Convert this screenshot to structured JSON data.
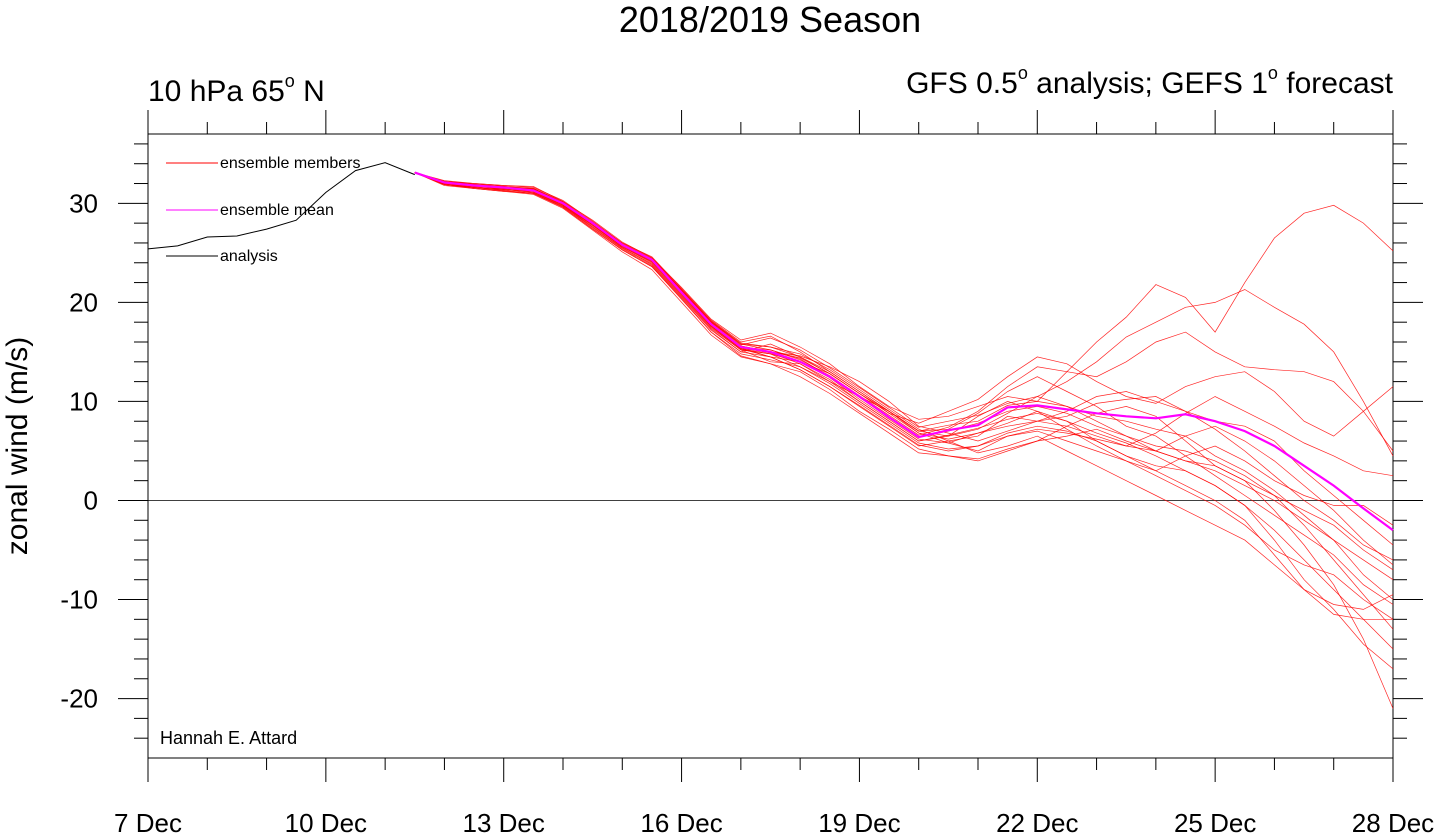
{
  "chart_data": {
    "type": "line",
    "title": "2018/2019 Season",
    "subtitle_left": "10 hPa 65",
    "subtitle_left_sup": "o",
    "subtitle_left_end": " N",
    "subtitle_right_a": "GFS 0.5",
    "subtitle_right_sup1": "o",
    "subtitle_right_b": " analysis; GEFS 1",
    "subtitle_right_sup2": "o",
    "subtitle_right_c": " forecast",
    "ylabel": "zonal wind (m/s)",
    "xlabel": "",
    "credit": "Hannah E. Attard",
    "xlim": [
      0,
      21
    ],
    "ylim": [
      -26,
      37
    ],
    "x_ticks": [
      {
        "x": 0,
        "label": "7 Dec"
      },
      {
        "x": 3,
        "label": "10 Dec"
      },
      {
        "x": 6,
        "label": "13 Dec"
      },
      {
        "x": 9,
        "label": "16 Dec"
      },
      {
        "x": 12,
        "label": "19 Dec"
      },
      {
        "x": 15,
        "label": "22 Dec"
      },
      {
        "x": 18,
        "label": "25 Dec"
      },
      {
        "x": 21,
        "label": "28 Dec"
      }
    ],
    "y_ticks": [
      {
        "y": 30,
        "label": "30"
      },
      {
        "y": 20,
        "label": "20"
      },
      {
        "y": 10,
        "label": "10"
      },
      {
        "y": 0,
        "label": "0"
      },
      {
        "y": -10,
        "label": "-10"
      },
      {
        "y": -20,
        "label": "-20"
      }
    ],
    "legend": [
      {
        "label": "ensemble members",
        "color": "#ff0000"
      },
      {
        "label": "ensemble mean",
        "color": "#ff00ff"
      },
      {
        "label": "analysis",
        "color": "#000000"
      }
    ],
    "legend_position": "top-left",
    "analysis": {
      "name": "analysis",
      "color": "#000000",
      "x": [
        0,
        0.5,
        1,
        1.5,
        2,
        2.5,
        3,
        3.5,
        4,
        4.5
      ],
      "y": [
        25.4,
        25.7,
        26.6,
        26.7,
        27.4,
        28.3,
        31.1,
        33.3,
        34.1,
        32.9
      ]
    },
    "ensemble_mean": {
      "name": "ensemble mean",
      "color": "#ff00ff",
      "x": [
        4.5,
        5,
        5.5,
        6,
        6.5,
        7,
        7.5,
        8,
        8.5,
        9,
        9.5,
        10,
        10.5,
        11,
        11.5,
        12,
        12.5,
        13,
        13.5,
        14,
        14.5,
        15,
        15.5,
        16,
        16.5,
        17,
        17.5,
        18,
        18.5,
        19,
        19.5,
        20,
        20.5,
        21
      ],
      "y": [
        33.1,
        32.1,
        31.8,
        31.6,
        31.3,
        30.0,
        28.0,
        25.8,
        24.3,
        21.0,
        17.8,
        15.5,
        15.0,
        14.0,
        12.5,
        10.5,
        8.4,
        6.4,
        7.1,
        7.6,
        9.4,
        9.6,
        9.2,
        8.8,
        8.5,
        8.3,
        8.7,
        8.0,
        7.0,
        5.5,
        3.5,
        1.5,
        -0.8,
        -3.0
      ]
    },
    "ensemble_members": {
      "name": "ensemble members",
      "color": "#ff0000",
      "x": [
        4.5,
        5,
        5.5,
        6,
        6.5,
        7,
        7.5,
        8,
        8.5,
        9,
        9.5,
        10,
        10.5,
        11,
        11.5,
        12,
        12.5,
        13,
        13.5,
        14,
        14.5,
        15,
        15.5,
        16,
        16.5,
        17,
        17.5,
        18,
        18.5,
        19,
        19.5,
        20,
        20.5,
        21
      ],
      "series": [
        {
          "y": [
            33.1,
            32.3,
            32.0,
            31.8,
            31.6,
            30.3,
            28.2,
            26.0,
            24.6,
            21.4,
            18.2,
            16.0,
            16.6,
            15.0,
            13.0,
            11.0,
            9.0,
            7.0,
            7.6,
            8.0,
            9.6,
            10.0,
            13.0,
            16.0,
            18.5,
            21.8,
            20.5,
            17.0,
            22.0,
            26.5,
            29.0,
            29.8,
            28.0,
            25.2
          ]
        },
        {
          "y": [
            33.1,
            32.0,
            31.7,
            31.5,
            31.2,
            29.8,
            27.8,
            25.6,
            24.0,
            20.8,
            17.5,
            15.2,
            14.0,
            13.8,
            12.0,
            10.0,
            8.0,
            6.0,
            6.5,
            7.2,
            8.8,
            10.5,
            12.0,
            14.0,
            16.5,
            18.0,
            19.5,
            20.0,
            21.3,
            19.5,
            17.8,
            15.0,
            10.0,
            4.5
          ]
        },
        {
          "y": [
            33.1,
            32.2,
            31.9,
            31.7,
            31.4,
            30.1,
            28.1,
            25.9,
            24.4,
            21.2,
            18.0,
            15.8,
            15.2,
            14.2,
            12.6,
            10.6,
            8.6,
            6.6,
            7.4,
            9.0,
            11.5,
            13.5,
            13.0,
            12.5,
            14.0,
            16.0,
            17.0,
            15.0,
            13.5,
            13.2,
            13.0,
            12.0,
            9.0,
            5.0
          ]
        },
        {
          "y": [
            33.1,
            31.9,
            31.6,
            31.4,
            31.1,
            29.7,
            27.6,
            25.5,
            23.8,
            20.6,
            17.3,
            15.0,
            15.8,
            14.5,
            12.8,
            10.8,
            8.8,
            7.8,
            9.0,
            10.2,
            12.5,
            14.5,
            13.8,
            12.0,
            10.5,
            9.8,
            11.5,
            12.5,
            13.0,
            11.0,
            8.0,
            6.5,
            9.0,
            11.5
          ]
        },
        {
          "y": [
            33.1,
            32.1,
            31.8,
            31.5,
            31.5,
            29.9,
            27.9,
            25.7,
            24.2,
            21.0,
            17.7,
            15.4,
            14.5,
            13.2,
            11.5,
            9.5,
            7.5,
            5.5,
            6.0,
            6.5,
            8.5,
            8.0,
            7.5,
            6.5,
            5.5,
            6.8,
            8.8,
            10.5,
            9.0,
            7.5,
            5.8,
            4.5,
            3.0,
            2.5
          ]
        },
        {
          "y": [
            33.1,
            32.0,
            31.6,
            31.3,
            31.0,
            29.6,
            27.4,
            25.3,
            23.6,
            20.4,
            17.0,
            14.8,
            14.2,
            13.5,
            12.0,
            10.5,
            9.0,
            6.8,
            5.8,
            5.0,
            6.5,
            7.0,
            6.0,
            5.0,
            4.0,
            3.0,
            4.5,
            5.5,
            4.0,
            2.0,
            0.5,
            -0.5,
            -0.5,
            -2.5
          ]
        },
        {
          "y": [
            33.1,
            32.2,
            32.0,
            31.8,
            31.7,
            30.2,
            28.3,
            26.1,
            24.5,
            21.5,
            18.3,
            16.2,
            16.9,
            15.5,
            13.8,
            11.5,
            9.5,
            8.2,
            8.5,
            9.5,
            10.5,
            10.0,
            9.5,
            8.5,
            8.0,
            7.2,
            6.5,
            4.5,
            3.0,
            1.0,
            -1.5,
            -4.0,
            -7.5,
            -10.0
          ]
        },
        {
          "y": [
            33.1,
            31.8,
            31.5,
            31.2,
            30.9,
            29.5,
            27.3,
            25.1,
            23.3,
            20.0,
            16.7,
            14.5,
            13.8,
            13.0,
            11.2,
            9.0,
            7.2,
            5.2,
            4.5,
            4.0,
            5.0,
            6.0,
            7.5,
            8.8,
            9.5,
            8.5,
            6.0,
            3.5,
            2.0,
            0.5,
            -1.0,
            -2.5,
            -5.0,
            -7.0
          ]
        },
        {
          "y": [
            33.1,
            32.1,
            31.7,
            31.6,
            31.3,
            30.0,
            27.9,
            25.8,
            24.3,
            21.1,
            17.9,
            15.6,
            15.0,
            14.6,
            13.5,
            12.0,
            10.0,
            7.5,
            6.8,
            6.0,
            7.0,
            8.0,
            8.5,
            9.8,
            10.2,
            10.5,
            9.0,
            7.2,
            5.0,
            2.5,
            0.0,
            -2.0,
            -4.5,
            -6.0
          ]
        },
        {
          "y": [
            33.1,
            32.0,
            31.8,
            31.4,
            31.2,
            29.8,
            27.7,
            25.6,
            24.1,
            20.9,
            17.6,
            15.3,
            14.8,
            13.5,
            11.8,
            9.8,
            7.8,
            5.8,
            5.2,
            5.5,
            6.8,
            7.5,
            7.0,
            6.0,
            4.5,
            3.5,
            3.0,
            1.5,
            -0.5,
            -3.0,
            -6.0,
            -9.0,
            -12.0,
            -15.0
          ]
        },
        {
          "y": [
            33.1,
            32.2,
            31.9,
            31.7,
            31.5,
            30.1,
            28.0,
            25.9,
            24.4,
            21.3,
            18.1,
            15.9,
            15.5,
            14.8,
            13.2,
            11.2,
            9.2,
            7.2,
            6.0,
            4.8,
            5.5,
            6.5,
            5.0,
            3.5,
            2.0,
            0.5,
            -1.0,
            -2.5,
            -4.0,
            -6.5,
            -9.0,
            -10.5,
            -11.0,
            -9.5
          ]
        },
        {
          "y": [
            33.1,
            31.9,
            31.6,
            31.3,
            31.0,
            29.7,
            27.5,
            25.4,
            23.7,
            20.5,
            17.2,
            15.0,
            14.5,
            14.0,
            12.4,
            10.2,
            8.2,
            6.2,
            5.8,
            6.8,
            7.8,
            9.0,
            8.0,
            6.8,
            5.8,
            4.5,
            3.0,
            1.5,
            -0.5,
            -4.0,
            -8.0,
            -11.0,
            -14.5,
            -17.0
          ]
        },
        {
          "y": [
            33.1,
            32.1,
            31.8,
            31.6,
            31.4,
            30.0,
            28.0,
            25.8,
            24.3,
            21.1,
            17.8,
            15.5,
            15.2,
            14.3,
            12.5,
            10.4,
            8.4,
            6.4,
            7.0,
            7.8,
            9.0,
            9.5,
            8.8,
            7.5,
            6.5,
            5.0,
            4.0,
            3.5,
            2.0,
            -1.0,
            -4.5,
            -8.5,
            -14.0,
            -21.0
          ]
        },
        {
          "y": [
            33.1,
            32.0,
            31.7,
            31.5,
            31.3,
            29.9,
            27.8,
            25.7,
            24.2,
            21.0,
            17.7,
            15.4,
            14.9,
            13.8,
            12.2,
            10.0,
            8.0,
            6.0,
            6.6,
            7.3,
            8.2,
            8.8,
            8.0,
            6.0,
            4.5,
            3.0,
            1.5,
            0.0,
            -2.0,
            -5.5,
            -9.0,
            -11.5,
            -12.0,
            -12.0
          ]
        },
        {
          "y": [
            33.1,
            32.2,
            31.9,
            31.7,
            31.5,
            30.2,
            28.1,
            26.0,
            24.5,
            21.3,
            18.1,
            15.8,
            15.5,
            14.5,
            13.0,
            11.0,
            9.0,
            7.0,
            6.5,
            8.5,
            10.0,
            9.0,
            7.2,
            5.5,
            4.0,
            2.5,
            1.0,
            -0.5,
            -2.5,
            -5.0,
            -6.5,
            -7.5,
            -10.0,
            -12.0
          ]
        },
        {
          "y": [
            33.1,
            31.9,
            31.6,
            31.4,
            31.1,
            29.8,
            27.6,
            25.5,
            23.9,
            20.7,
            17.4,
            15.2,
            14.8,
            14.0,
            12.8,
            10.8,
            9.0,
            7.0,
            7.2,
            8.8,
            11.0,
            12.5,
            11.0,
            9.5,
            7.5,
            6.5,
            4.5,
            2.5,
            0.5,
            -1.5,
            -3.5,
            -5.5,
            -8.5,
            -10.5
          ]
        },
        {
          "y": [
            33.1,
            32.1,
            31.8,
            31.6,
            31.3,
            30.0,
            27.9,
            25.8,
            24.3,
            21.1,
            17.9,
            15.6,
            15.0,
            14.4,
            12.8,
            10.8,
            8.8,
            6.8,
            6.2,
            6.8,
            7.5,
            8.0,
            9.0,
            10.5,
            11.0,
            10.0,
            9.0,
            8.0,
            7.5,
            6.0,
            3.0,
            0.5,
            -2.0,
            -4.5
          ]
        },
        {
          "y": [
            33.1,
            32.0,
            31.7,
            31.5,
            31.2,
            29.9,
            27.8,
            25.7,
            24.1,
            20.9,
            17.6,
            15.3,
            14.5,
            13.2,
            11.5,
            9.6,
            7.6,
            5.6,
            5.0,
            5.5,
            6.5,
            7.2,
            6.8,
            6.2,
            5.5,
            5.0,
            6.5,
            7.5,
            6.0,
            4.0,
            1.5,
            -1.0,
            -4.0,
            -6.5
          ]
        },
        {
          "y": [
            33.1,
            32.2,
            31.9,
            31.7,
            31.4,
            30.1,
            28.0,
            25.9,
            24.4,
            21.2,
            18.0,
            15.7,
            16.4,
            15.2,
            13.4,
            11.4,
            9.4,
            7.4,
            8.0,
            8.6,
            9.8,
            10.5,
            9.5,
            8.0,
            6.5,
            5.5,
            5.0,
            4.0,
            2.5,
            0.5,
            -2.5,
            -6.0,
            -9.5,
            -13.0
          ]
        },
        {
          "y": [
            33.1,
            31.9,
            31.5,
            31.2,
            31.0,
            29.6,
            27.4,
            25.3,
            23.6,
            20.3,
            17.0,
            14.6,
            13.8,
            12.5,
            10.8,
            8.8,
            6.8,
            4.8,
            4.5,
            4.2,
            5.2,
            6.0,
            6.5,
            7.2,
            6.0,
            5.0,
            4.0,
            3.0,
            1.5,
            0.0,
            -2.0,
            -4.0,
            -6.0,
            -8.0
          ]
        }
      ]
    }
  }
}
